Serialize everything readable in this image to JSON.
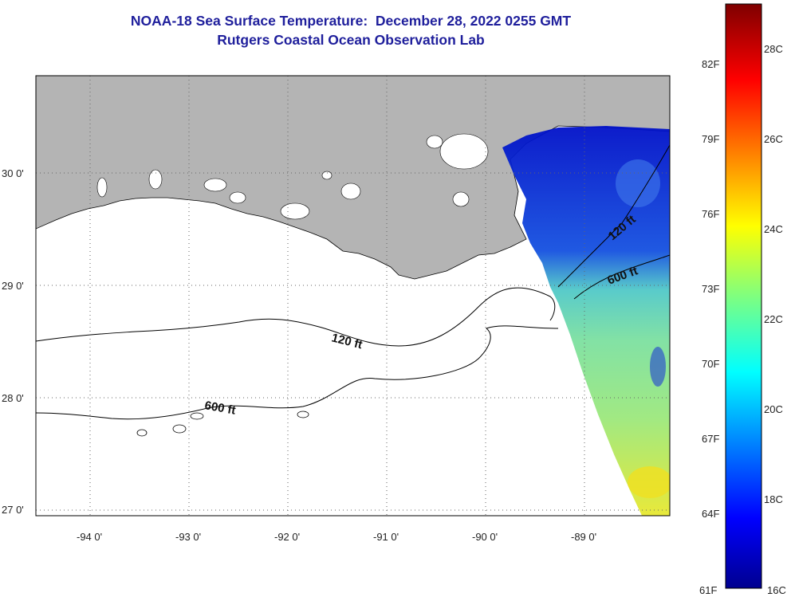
{
  "title": {
    "line1": "NOAA-18 Sea Surface Temperature:  December 28, 2022 0255 GMT",
    "line2": "Rutgers Coastal Ocean Observation Lab"
  },
  "map": {
    "lat_labels": [
      "30 0'",
      "29 0'",
      "28 0'",
      "27 0'"
    ],
    "lon_labels": [
      "-94 0'",
      "-93 0'",
      "-92 0'",
      "-91 0'",
      "-90 0'",
      "-89 0'"
    ],
    "contours": [
      {
        "label": "120 ft",
        "depth_ft": 120
      },
      {
        "label": "600 ft",
        "depth_ft": 600
      },
      {
        "label": "120 ft",
        "depth_ft": 120
      },
      {
        "label": "600 ft",
        "depth_ft": 600
      }
    ],
    "colors": {
      "land": "#b4b4b4",
      "sea_nodata": "#ffffff",
      "title": "#1f1f9c"
    }
  },
  "colorbar": {
    "fahrenheit_labels": [
      "82F",
      "79F",
      "76F",
      "73F",
      "70F",
      "67F",
      "64F",
      "61F"
    ],
    "celsius_labels": [
      "28C",
      "26C",
      "24C",
      "22C",
      "20C",
      "18C",
      "16C"
    ],
    "range_c": [
      16,
      29.5
    ],
    "colormap": "jet"
  }
}
